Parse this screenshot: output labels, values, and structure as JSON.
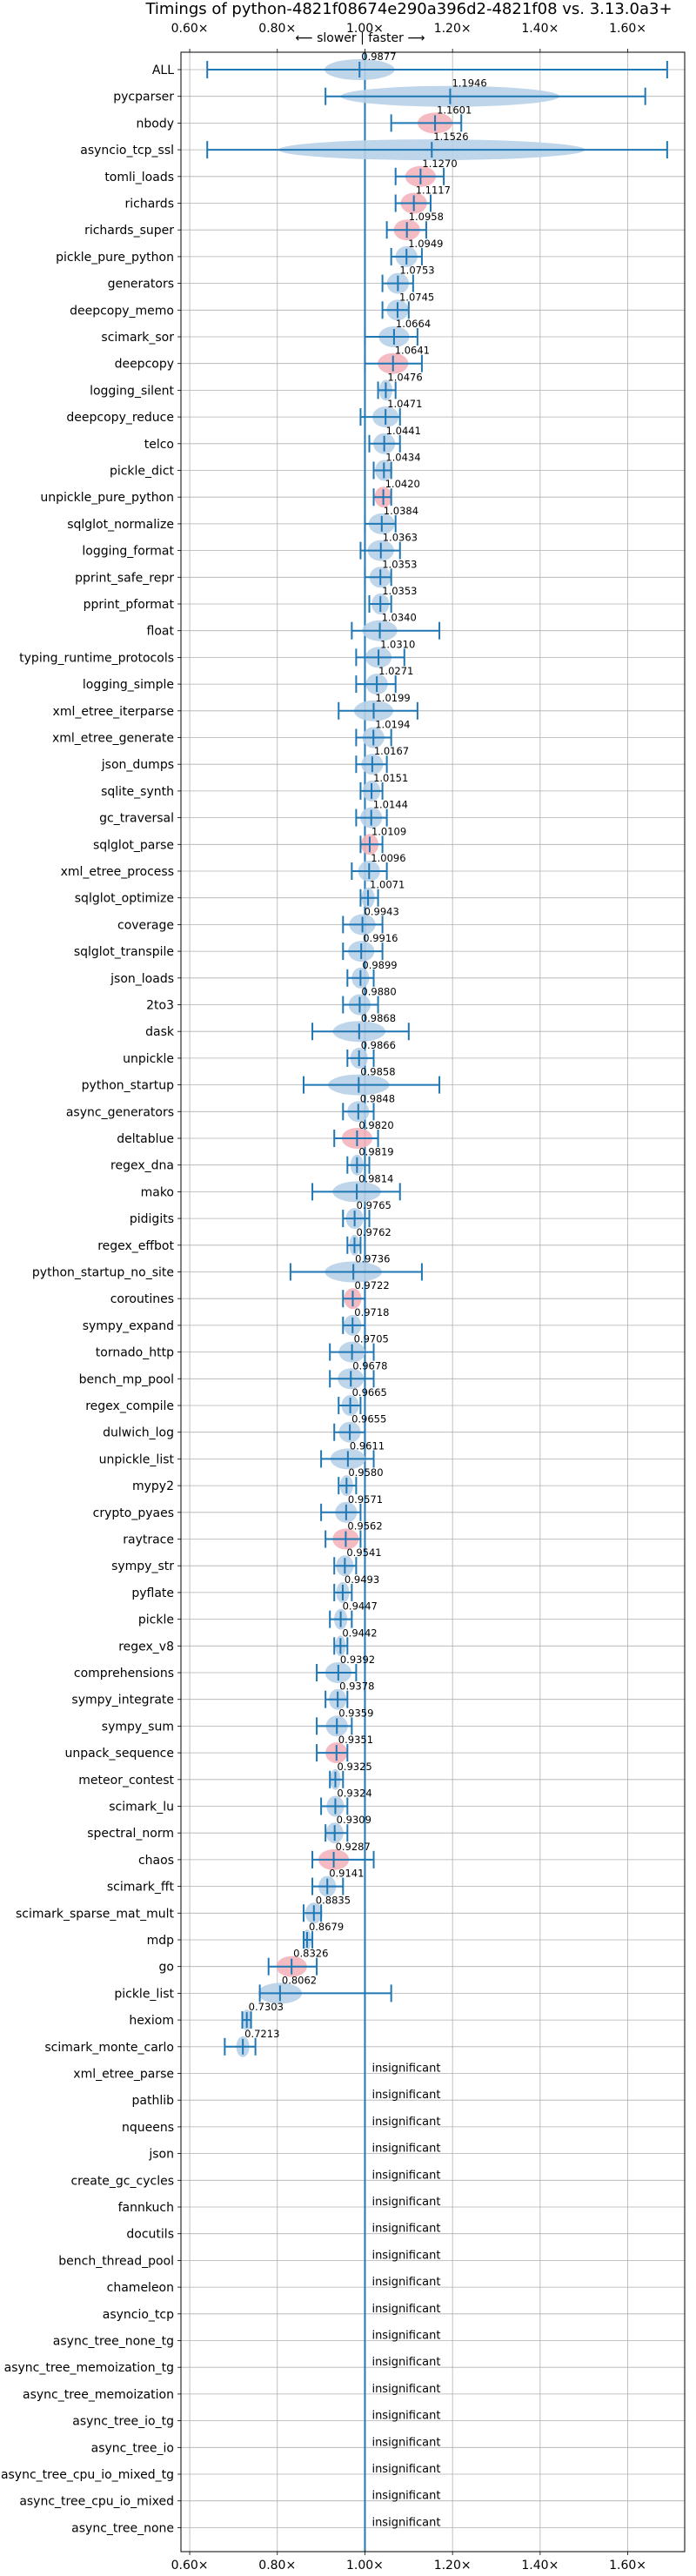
{
  "chart_data": {
    "type": "violin",
    "title": "Timings of python-4821f08674e290a396d2-4821f08 vs. 3.13.0a3+",
    "direction_label": "⟵ slower | faster ⟶",
    "x_ticks": [
      "0.60×",
      "0.80×",
      "1.00×",
      "1.20×",
      "1.40×",
      "1.60×"
    ],
    "x_tick_values": [
      0.6,
      0.8,
      1.0,
      1.2,
      1.4,
      1.6
    ],
    "xlim": [
      0.58,
      1.73
    ],
    "grid": true,
    "insignificant_label": "insignificant",
    "colors": {
      "faster": "#1f77b4",
      "violin_blue": "#b8d0e8",
      "violin_red": "#f4b4bc"
    },
    "rows": [
      {
        "name": "ALL",
        "value": 0.9877,
        "min": 0.64,
        "max": 1.69,
        "spread": 0.08,
        "color": "blue"
      },
      {
        "name": "pycparser",
        "value": 1.1946,
        "min": 0.91,
        "max": 1.64,
        "spread": 0.25,
        "color": "blue"
      },
      {
        "name": "nbody",
        "value": 1.1601,
        "min": 1.06,
        "max": 1.22,
        "spread": 0.04,
        "color": "red"
      },
      {
        "name": "asyncio_tcp_ssl",
        "value": 1.1526,
        "min": 0.64,
        "max": 1.69,
        "spread": 0.35,
        "color": "blue"
      },
      {
        "name": "tomli_loads",
        "value": 1.127,
        "min": 1.07,
        "max": 1.18,
        "spread": 0.035,
        "color": "red"
      },
      {
        "name": "richards",
        "value": 1.1117,
        "min": 1.07,
        "max": 1.15,
        "spread": 0.03,
        "color": "red"
      },
      {
        "name": "richards_super",
        "value": 1.0958,
        "min": 1.05,
        "max": 1.14,
        "spread": 0.03,
        "color": "red"
      },
      {
        "name": "pickle_pure_python",
        "value": 1.0949,
        "min": 1.06,
        "max": 1.13,
        "spread": 0.025,
        "color": "blue"
      },
      {
        "name": "generators",
        "value": 1.0753,
        "min": 1.04,
        "max": 1.11,
        "spread": 0.025,
        "color": "blue"
      },
      {
        "name": "deepcopy_memo",
        "value": 1.0745,
        "min": 1.04,
        "max": 1.1,
        "spread": 0.025,
        "color": "blue"
      },
      {
        "name": "scimark_sor",
        "value": 1.0664,
        "min": 1.0,
        "max": 1.12,
        "spread": 0.035,
        "color": "blue"
      },
      {
        "name": "deepcopy",
        "value": 1.0641,
        "min": 1.0,
        "max": 1.13,
        "spread": 0.035,
        "color": "red"
      },
      {
        "name": "logging_silent",
        "value": 1.0476,
        "min": 1.03,
        "max": 1.07,
        "spread": 0.015,
        "color": "blue"
      },
      {
        "name": "deepcopy_reduce",
        "value": 1.0471,
        "min": 0.99,
        "max": 1.08,
        "spread": 0.03,
        "color": "blue"
      },
      {
        "name": "telco",
        "value": 1.0441,
        "min": 1.01,
        "max": 1.08,
        "spread": 0.025,
        "color": "blue"
      },
      {
        "name": "pickle_dict",
        "value": 1.0434,
        "min": 1.02,
        "max": 1.06,
        "spread": 0.02,
        "color": "blue"
      },
      {
        "name": "unpickle_pure_python",
        "value": 1.042,
        "min": 1.02,
        "max": 1.06,
        "spread": 0.02,
        "color": "red"
      },
      {
        "name": "sqlglot_normalize",
        "value": 1.0384,
        "min": 1.0,
        "max": 1.07,
        "spread": 0.03,
        "color": "blue"
      },
      {
        "name": "logging_format",
        "value": 1.0363,
        "min": 0.99,
        "max": 1.08,
        "spread": 0.03,
        "color": "blue"
      },
      {
        "name": "pprint_safe_repr",
        "value": 1.0353,
        "min": 1.0,
        "max": 1.06,
        "spread": 0.025,
        "color": "blue"
      },
      {
        "name": "pprint_pformat",
        "value": 1.0353,
        "min": 1.01,
        "max": 1.06,
        "spread": 0.02,
        "color": "blue"
      },
      {
        "name": "float",
        "value": 1.034,
        "min": 0.97,
        "max": 1.17,
        "spread": 0.04,
        "color": "blue"
      },
      {
        "name": "typing_runtime_protocols",
        "value": 1.031,
        "min": 0.98,
        "max": 1.09,
        "spread": 0.03,
        "color": "blue"
      },
      {
        "name": "logging_simple",
        "value": 1.0271,
        "min": 0.98,
        "max": 1.07,
        "spread": 0.025,
        "color": "blue"
      },
      {
        "name": "xml_etree_iterparse",
        "value": 1.0199,
        "min": 0.94,
        "max": 1.12,
        "spread": 0.045,
        "color": "blue"
      },
      {
        "name": "xml_etree_generate",
        "value": 1.0194,
        "min": 0.98,
        "max": 1.06,
        "spread": 0.025,
        "color": "blue"
      },
      {
        "name": "json_dumps",
        "value": 1.0167,
        "min": 0.98,
        "max": 1.05,
        "spread": 0.025,
        "color": "blue"
      },
      {
        "name": "sqlite_synth",
        "value": 1.0151,
        "min": 0.99,
        "max": 1.04,
        "spread": 0.02,
        "color": "blue"
      },
      {
        "name": "gc_traversal",
        "value": 1.0144,
        "min": 0.98,
        "max": 1.05,
        "spread": 0.025,
        "color": "blue"
      },
      {
        "name": "sqlglot_parse",
        "value": 1.0109,
        "min": 0.99,
        "max": 1.04,
        "spread": 0.02,
        "color": "red"
      },
      {
        "name": "xml_etree_process",
        "value": 1.0096,
        "min": 0.97,
        "max": 1.05,
        "spread": 0.025,
        "color": "blue"
      },
      {
        "name": "sqlglot_optimize",
        "value": 1.0071,
        "min": 0.99,
        "max": 1.03,
        "spread": 0.015,
        "color": "blue"
      },
      {
        "name": "coverage",
        "value": 0.9943,
        "min": 0.95,
        "max": 1.04,
        "spread": 0.03,
        "color": "blue"
      },
      {
        "name": "sqlglot_transpile",
        "value": 0.9916,
        "min": 0.95,
        "max": 1.04,
        "spread": 0.03,
        "color": "blue"
      },
      {
        "name": "json_loads",
        "value": 0.9899,
        "min": 0.96,
        "max": 1.02,
        "spread": 0.02,
        "color": "blue"
      },
      {
        "name": "2to3",
        "value": 0.988,
        "min": 0.95,
        "max": 1.03,
        "spread": 0.025,
        "color": "blue"
      },
      {
        "name": "dask",
        "value": 0.9868,
        "min": 0.88,
        "max": 1.1,
        "spread": 0.06,
        "color": "blue"
      },
      {
        "name": "unpickle",
        "value": 0.9866,
        "min": 0.96,
        "max": 1.02,
        "spread": 0.02,
        "color": "blue"
      },
      {
        "name": "python_startup",
        "value": 0.9858,
        "min": 0.86,
        "max": 1.17,
        "spread": 0.07,
        "color": "blue"
      },
      {
        "name": "async_generators",
        "value": 0.9848,
        "min": 0.95,
        "max": 1.02,
        "spread": 0.025,
        "color": "blue"
      },
      {
        "name": "deltablue",
        "value": 0.982,
        "min": 0.93,
        "max": 1.03,
        "spread": 0.035,
        "color": "red"
      },
      {
        "name": "regex_dna",
        "value": 0.9819,
        "min": 0.96,
        "max": 1.01,
        "spread": 0.015,
        "color": "blue"
      },
      {
        "name": "mako",
        "value": 0.9814,
        "min": 0.88,
        "max": 1.08,
        "spread": 0.055,
        "color": "blue"
      },
      {
        "name": "pidigits",
        "value": 0.9765,
        "min": 0.95,
        "max": 1.01,
        "spread": 0.02,
        "color": "blue"
      },
      {
        "name": "regex_effbot",
        "value": 0.9762,
        "min": 0.96,
        "max": 0.99,
        "spread": 0.012,
        "color": "blue"
      },
      {
        "name": "python_startup_no_site",
        "value": 0.9736,
        "min": 0.83,
        "max": 1.13,
        "spread": 0.065,
        "color": "blue"
      },
      {
        "name": "coroutines",
        "value": 0.9722,
        "min": 0.95,
        "max": 1.0,
        "spread": 0.02,
        "color": "red"
      },
      {
        "name": "sympy_expand",
        "value": 0.9718,
        "min": 0.95,
        "max": 1.0,
        "spread": 0.02,
        "color": "blue"
      },
      {
        "name": "tornado_http",
        "value": 0.9705,
        "min": 0.92,
        "max": 1.02,
        "spread": 0.03,
        "color": "blue"
      },
      {
        "name": "bench_mp_pool",
        "value": 0.9678,
        "min": 0.92,
        "max": 1.02,
        "spread": 0.03,
        "color": "blue"
      },
      {
        "name": "regex_compile",
        "value": 0.9665,
        "min": 0.94,
        "max": 0.99,
        "spread": 0.02,
        "color": "blue"
      },
      {
        "name": "dulwich_log",
        "value": 0.9655,
        "min": 0.93,
        "max": 1.0,
        "spread": 0.025,
        "color": "blue"
      },
      {
        "name": "unpickle_list",
        "value": 0.9611,
        "min": 0.9,
        "max": 1.02,
        "spread": 0.04,
        "color": "blue"
      },
      {
        "name": "mypy2",
        "value": 0.958,
        "min": 0.94,
        "max": 0.98,
        "spread": 0.015,
        "color": "blue"
      },
      {
        "name": "crypto_pyaes",
        "value": 0.9571,
        "min": 0.9,
        "max": 0.99,
        "spread": 0.025,
        "color": "blue"
      },
      {
        "name": "raytrace",
        "value": 0.9562,
        "min": 0.91,
        "max": 0.99,
        "spread": 0.03,
        "color": "red"
      },
      {
        "name": "sympy_str",
        "value": 0.9541,
        "min": 0.93,
        "max": 0.98,
        "spread": 0.02,
        "color": "blue"
      },
      {
        "name": "pyflate",
        "value": 0.9493,
        "min": 0.93,
        "max": 0.97,
        "spread": 0.015,
        "color": "blue"
      },
      {
        "name": "pickle",
        "value": 0.9447,
        "min": 0.92,
        "max": 0.97,
        "spread": 0.015,
        "color": "blue"
      },
      {
        "name": "regex_v8",
        "value": 0.9442,
        "min": 0.93,
        "max": 0.96,
        "spread": 0.012,
        "color": "blue"
      },
      {
        "name": "comprehensions",
        "value": 0.9392,
        "min": 0.89,
        "max": 0.98,
        "spread": 0.03,
        "color": "blue"
      },
      {
        "name": "sympy_integrate",
        "value": 0.9378,
        "min": 0.91,
        "max": 0.96,
        "spread": 0.02,
        "color": "blue"
      },
      {
        "name": "sympy_sum",
        "value": 0.9359,
        "min": 0.89,
        "max": 0.97,
        "spread": 0.025,
        "color": "blue"
      },
      {
        "name": "unpack_sequence",
        "value": 0.9351,
        "min": 0.89,
        "max": 0.96,
        "spread": 0.025,
        "color": "red"
      },
      {
        "name": "meteor_contest",
        "value": 0.9325,
        "min": 0.92,
        "max": 0.95,
        "spread": 0.012,
        "color": "blue"
      },
      {
        "name": "scimark_lu",
        "value": 0.9324,
        "min": 0.9,
        "max": 0.96,
        "spread": 0.02,
        "color": "blue"
      },
      {
        "name": "spectral_norm",
        "value": 0.9309,
        "min": 0.91,
        "max": 0.96,
        "spread": 0.02,
        "color": "blue"
      },
      {
        "name": "chaos",
        "value": 0.9287,
        "min": 0.88,
        "max": 1.02,
        "spread": 0.035,
        "color": "red"
      },
      {
        "name": "scimark_fft",
        "value": 0.9141,
        "min": 0.88,
        "max": 0.95,
        "spread": 0.02,
        "color": "blue"
      },
      {
        "name": "scimark_sparse_mat_mult",
        "value": 0.8835,
        "min": 0.86,
        "max": 0.9,
        "spread": 0.02,
        "color": "blue"
      },
      {
        "name": "mdp",
        "value": 0.8679,
        "min": 0.86,
        "max": 0.88,
        "spread": 0.01,
        "color": "blue"
      },
      {
        "name": "go",
        "value": 0.8326,
        "min": 0.78,
        "max": 0.89,
        "spread": 0.035,
        "color": "red"
      },
      {
        "name": "pickle_list",
        "value": 0.8062,
        "min": 0.76,
        "max": 1.06,
        "spread": 0.05,
        "color": "blue"
      },
      {
        "name": "hexiom",
        "value": 0.7303,
        "min": 0.72,
        "max": 0.74,
        "spread": 0.012,
        "color": "blue"
      },
      {
        "name": "scimark_monte_carlo",
        "value": 0.7213,
        "min": 0.68,
        "max": 0.75,
        "spread": 0.015,
        "color": "blue"
      },
      {
        "name": "xml_etree_parse",
        "insignificant": true
      },
      {
        "name": "pathlib",
        "insignificant": true
      },
      {
        "name": "nqueens",
        "insignificant": true
      },
      {
        "name": "json",
        "insignificant": true
      },
      {
        "name": "create_gc_cycles",
        "insignificant": true
      },
      {
        "name": "fannkuch",
        "insignificant": true
      },
      {
        "name": "docutils",
        "insignificant": true
      },
      {
        "name": "bench_thread_pool",
        "insignificant": true
      },
      {
        "name": "chameleon",
        "insignificant": true
      },
      {
        "name": "asyncio_tcp",
        "insignificant": true
      },
      {
        "name": "async_tree_none_tg",
        "insignificant": true
      },
      {
        "name": "async_tree_memoization_tg",
        "insignificant": true
      },
      {
        "name": "async_tree_memoization",
        "insignificant": true
      },
      {
        "name": "async_tree_io_tg",
        "insignificant": true
      },
      {
        "name": "async_tree_io",
        "insignificant": true
      },
      {
        "name": "async_tree_cpu_io_mixed_tg",
        "insignificant": true
      },
      {
        "name": "async_tree_cpu_io_mixed",
        "insignificant": true
      },
      {
        "name": "async_tree_none",
        "insignificant": true
      }
    ]
  }
}
